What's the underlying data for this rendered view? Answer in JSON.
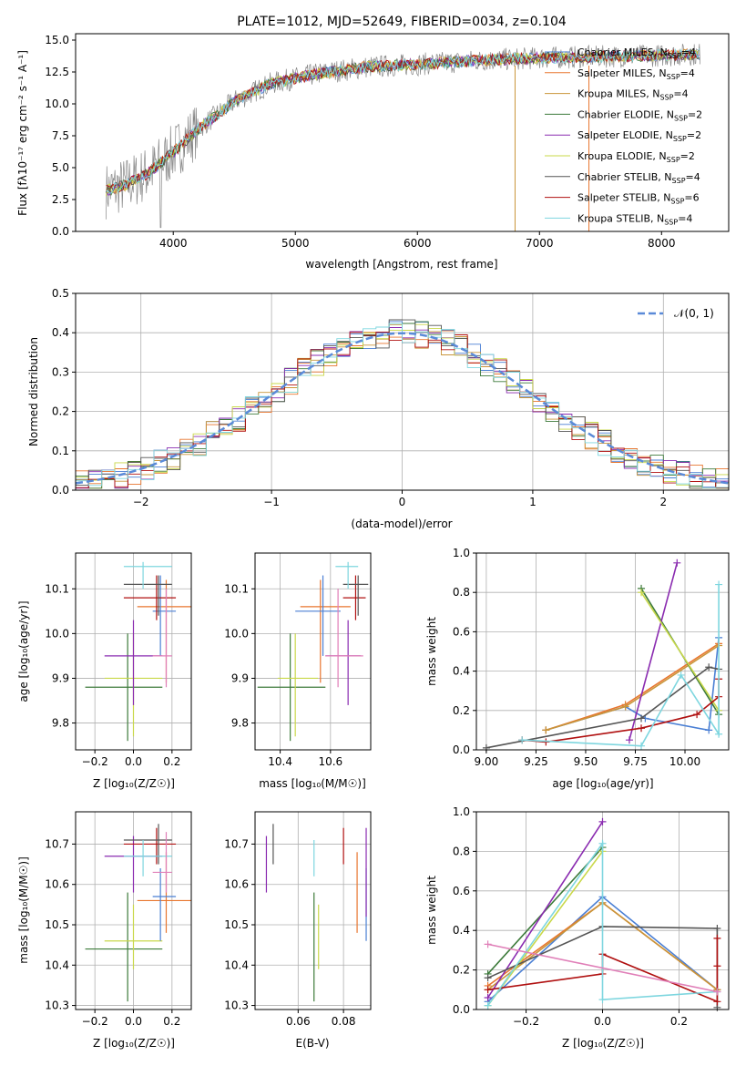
{
  "colors": {
    "cmiles": "#4a7fd4",
    "smiles": "#e8762f",
    "kmiles": "#c9953a",
    "celodie": "#3c7a3a",
    "selodie": "#8a2bb0",
    "kelodie": "#c9d84a",
    "cstelib": "#555555",
    "sstelib": "#b01010",
    "kstelib": "#7ed6df",
    "normal": "#5a8ad8"
  },
  "chart_data": [
    {
      "type": "line",
      "title": "PLATE=1012, MJD=52649, FIBERID=0034, z=0.104",
      "xlabel": "wavelength [Angstrom, rest frame]",
      "ylabel": "Flux [fλ10⁻¹⁷ erg cm⁻² s⁻¹ A⁻¹]",
      "xlim": [
        3200,
        8550
      ],
      "ylim": [
        0,
        15.5
      ],
      "xticks": [
        "4000",
        "5000",
        "6000",
        "7000",
        "8000"
      ],
      "yticks": [
        "0.0",
        "2.5",
        "5.0",
        "7.5",
        "10.0",
        "12.5",
        "15.0"
      ],
      "xtick_values": [
        4000,
        5000,
        6000,
        7000,
        8000
      ],
      "ytick_values": [
        0,
        2.5,
        5,
        7.5,
        10,
        12.5,
        15
      ],
      "observed": {
        "x": [
          3450,
          3600,
          3800,
          4000,
          4200,
          4500,
          4800,
          5200,
          5600,
          6000,
          6500,
          7000,
          7500,
          8000,
          8300
        ],
        "y": [
          3.2,
          3.6,
          4.6,
          6.2,
          8.0,
          10.2,
          11.6,
          12.4,
          12.9,
          13.1,
          13.4,
          13.6,
          13.7,
          13.8,
          13.9
        ]
      },
      "legend": [
        "Chabrier MILES, N_SSP=4",
        "Salpeter MILES, N_SSP=4",
        "Kroupa MILES, N_SSP=4",
        "Chabrier ELODIE, N_SSP=2",
        "Salpeter ELODIE, N_SSP=2",
        "Kroupa ELODIE, N_SSP=2",
        "Chabrier STELIB, N_SSP=4",
        "Salpeter STELIB, N_SSP=6",
        "Kroupa STELIB, N_SSP=4"
      ],
      "legend_labels": [
        "Chabrier MILES, N",
        "Salpeter MILES, N",
        "Kroupa MILES, N",
        "Chabrier ELODIE, N",
        "Salpeter ELODIE, N",
        "Kroupa ELODIE, N",
        "Chabrier STELIB, N",
        "Salpeter STELIB, N",
        "Kroupa STELIB, N"
      ],
      "legend_sub": "SSP",
      "legend_counts": [
        "=4",
        "=4",
        "=4",
        "=2",
        "=2",
        "=2",
        "=4",
        "=6",
        "=4"
      ],
      "legend_placement": "top-right"
    },
    {
      "type": "line",
      "xlabel": "(data-model)/error",
      "ylabel": "Normed distribution",
      "xlim": [
        -2.5,
        2.5
      ],
      "ylim": [
        0,
        0.5
      ],
      "xticks": [
        "−2",
        "−1",
        "0",
        "1",
        "2"
      ],
      "yticks": [
        "0.0",
        "0.1",
        "0.2",
        "0.3",
        "0.4",
        "0.5"
      ],
      "xtick_values": [
        -2,
        -1,
        0,
        1,
        2
      ],
      "ytick_values": [
        0,
        0.1,
        0.2,
        0.3,
        0.4,
        0.5
      ],
      "grid": true,
      "normal_label": "𝒩(0, 1)",
      "legend_placement": "top-right"
    },
    {
      "type": "scatter",
      "xlabel": "Z [log₁₀(Z/Z☉)]",
      "ylabel": "age  [log₁₀(age/yr)]",
      "xlim": [
        -0.3,
        0.3
      ],
      "ylim": [
        9.74,
        10.18
      ],
      "xticks": [
        "−0.2",
        "0.0",
        "0.2"
      ],
      "xtick_values": [
        -0.2,
        0,
        0.2
      ],
      "yticks": [
        "9.8",
        "9.9",
        "10.0",
        "10.1"
      ],
      "ytick_values": [
        9.8,
        9.9,
        10.0,
        10.1
      ],
      "grid": true
    },
    {
      "type": "scatter",
      "xlabel": "mass [log₁₀(M/M☉)]",
      "xlim": [
        10.3,
        10.76
      ],
      "ylim": [
        9.74,
        10.18
      ],
      "xticks": [
        "10.4",
        "10.6"
      ],
      "xtick_values": [
        10.4,
        10.6
      ],
      "yticks": [
        "9.8",
        "9.9",
        "10.0",
        "10.1"
      ],
      "ytick_values": [
        9.8,
        9.9,
        10.0,
        10.1
      ],
      "grid": true
    },
    {
      "type": "line",
      "xlabel": "age  [log₁₀(age/yr)]",
      "ylabel": "mass weight",
      "xlim": [
        8.95,
        10.22
      ],
      "ylim": [
        0,
        1.0
      ],
      "xticks": [
        "9.00",
        "9.25",
        "9.50",
        "9.75",
        "10.00"
      ],
      "xtick_values": [
        9.0,
        9.25,
        9.5,
        9.75,
        10.0
      ],
      "yticks": [
        "0.0",
        "0.2",
        "0.4",
        "0.6",
        "0.8",
        "1.0"
      ],
      "ytick_values": [
        0,
        0.2,
        0.4,
        0.6,
        0.8,
        1.0
      ],
      "grid": true,
      "series": [
        {
          "c": "cmiles",
          "x": [
            9.3,
            9.7,
            9.8,
            10.12,
            10.17
          ],
          "y": [
            0.1,
            0.22,
            0.16,
            0.1,
            0.57
          ]
        },
        {
          "c": "smiles",
          "x": [
            9.3,
            9.7,
            10.17
          ],
          "y": [
            0.1,
            0.23,
            0.54
          ]
        },
        {
          "c": "kmiles",
          "x": [
            9.3,
            9.7,
            10.17
          ],
          "y": [
            0.1,
            0.22,
            0.53
          ]
        },
        {
          "c": "celodie",
          "x": [
            9.78,
            10.17
          ],
          "y": [
            0.82,
            0.18
          ]
        },
        {
          "c": "selodie",
          "x": [
            9.72,
            9.96
          ],
          "y": [
            0.05,
            0.95
          ]
        },
        {
          "c": "kelodie",
          "x": [
            9.78,
            10.17
          ],
          "y": [
            0.8,
            0.2
          ]
        },
        {
          "c": "cstelib",
          "x": [
            9.0,
            9.78,
            10.12,
            10.17
          ],
          "y": [
            0.01,
            0.16,
            0.42,
            0.41
          ]
        },
        {
          "c": "sstelib",
          "x": [
            9.18,
            9.3,
            9.78,
            10.06,
            10.17,
            10.17
          ],
          "y": [
            0.05,
            0.04,
            0.11,
            0.18,
            0.27,
            0.36
          ]
        },
        {
          "c": "kstelib",
          "x": [
            9.18,
            9.78,
            9.98,
            10.17,
            10.17
          ],
          "y": [
            0.05,
            0.02,
            0.38,
            0.08,
            0.84
          ]
        }
      ]
    },
    {
      "type": "scatter",
      "xlabel": "Z [log₁₀(Z/Z☉)]",
      "ylabel": "mass [log₁₀(M/M☉)]",
      "xlim": [
        -0.3,
        0.3
      ],
      "ylim": [
        10.29,
        10.78
      ],
      "xticks": [
        "−0.2",
        "0.0",
        "0.2"
      ],
      "xtick_values": [
        -0.2,
        0,
        0.2
      ],
      "yticks": [
        "10.3",
        "10.4",
        "10.5",
        "10.6",
        "10.7"
      ],
      "ytick_values": [
        10.3,
        10.4,
        10.5,
        10.6,
        10.7
      ],
      "grid": true
    },
    {
      "type": "scatter",
      "xlabel": "E(B-V)",
      "xlim": [
        0.041,
        0.092
      ],
      "ylim": [
        10.29,
        10.78
      ],
      "xticks": [
        "0.06",
        "0.08"
      ],
      "xtick_values": [
        0.06,
        0.08
      ],
      "yticks": [
        "10.3",
        "10.4",
        "10.5",
        "10.6",
        "10.7"
      ],
      "ytick_values": [
        10.3,
        10.4,
        10.5,
        10.6,
        10.7
      ],
      "grid": true,
      "points": [
        {
          "c": "selodie",
          "x": 0.046,
          "y0": 10.58,
          "y1": 10.72
        },
        {
          "c": "cstelib",
          "x": 0.049,
          "y0": 10.65,
          "y1": 10.75
        },
        {
          "c": "celodie",
          "x": 0.067,
          "y0": 10.31,
          "y1": 10.58
        },
        {
          "c": "kstelib",
          "x": 0.067,
          "y0": 10.62,
          "y1": 10.71
        },
        {
          "c": "kelodie",
          "x": 0.069,
          "y0": 10.39,
          "y1": 10.55
        },
        {
          "c": "sstelib",
          "x": 0.08,
          "y0": 10.65,
          "y1": 10.74
        },
        {
          "c": "smiles",
          "x": 0.086,
          "y0": 10.48,
          "y1": 10.68
        },
        {
          "c": "cmiles",
          "x": 0.09,
          "y0": 10.46,
          "y1": 10.64
        },
        {
          "c": "selodie",
          "x": 0.09,
          "y0": 10.52,
          "y1": 10.74
        }
      ]
    },
    {
      "type": "line",
      "xlabel": "Z [log₁₀(Z/Z☉)]",
      "ylabel": "mass weight",
      "xlim": [
        -0.33,
        0.33
      ],
      "ylim": [
        0,
        1.0
      ],
      "xticks": [
        "−0.2",
        "0.0",
        "0.2"
      ],
      "xtick_values": [
        -0.2,
        0,
        0.2
      ],
      "yticks": [
        "0.0",
        "0.2",
        "0.4",
        "0.6",
        "0.8",
        "1.0"
      ],
      "ytick_values": [
        0,
        0.2,
        0.4,
        0.6,
        0.8,
        1.0
      ],
      "grid": true,
      "series": [
        {
          "c": "cmiles",
          "x": [
            -0.3,
            0,
            0.3
          ],
          "y": [
            0.04,
            0.57,
            0.1
          ]
        },
        {
          "c": "smiles",
          "x": [
            -0.3,
            0,
            0.3
          ],
          "y": [
            0.12,
            0.54,
            0.1
          ]
        },
        {
          "c": "kmiles",
          "x": [
            -0.3,
            0,
            0.3
          ],
          "y": [
            0.1,
            0.54,
            0.1
          ]
        },
        {
          "c": "celodie",
          "x": [
            -0.3,
            0
          ],
          "y": [
            0.18,
            0.82
          ]
        },
        {
          "c": "selodie",
          "x": [
            -0.3,
            0
          ],
          "y": [
            0.06,
            0.95
          ]
        },
        {
          "c": "kelodie",
          "x": [
            -0.3,
            0
          ],
          "y": [
            0.02,
            0.8
          ]
        },
        {
          "c": "cstelib",
          "x": [
            -0.3,
            0,
            0.3,
            0.3
          ],
          "y": [
            0.16,
            0.42,
            0.41,
            0.01
          ]
        },
        {
          "c": "sstelib",
          "x": [
            -0.3,
            0,
            0,
            0.3,
            0.3,
            0.3
          ],
          "y": [
            0.1,
            0.18,
            0.28,
            0.04,
            0.22,
            0.36
          ]
        },
        {
          "c": "kstelib",
          "x": [
            -0.3,
            0,
            0,
            0.3
          ],
          "y": [
            0.02,
            0.84,
            0.05,
            0.09
          ]
        },
        {
          "c": "selodie2",
          "x": [
            -0.3,
            0.3
          ],
          "y": [
            0.33,
            0.09
          ]
        }
      ]
    }
  ],
  "scatter_points": [
    {
      "c": "celodie",
      "z": -0.03,
      "zlo": -0.25,
      "zhi": 0.15,
      "age": 9.88,
      "alo": 9.76,
      "ahi": 10.0,
      "m": 10.44,
      "mlo": 10.31,
      "mhi": 10.58
    },
    {
      "c": "kelodie",
      "z": 0.0,
      "zlo": -0.15,
      "zhi": 0.15,
      "age": 9.9,
      "alo": 9.77,
      "ahi": 10.0,
      "m": 10.46,
      "mlo": 10.39,
      "mhi": 10.55
    },
    {
      "c": "selodie",
      "z": 0.0,
      "zlo": -0.15,
      "zhi": 0.15,
      "age": 9.95,
      "alo": 9.84,
      "ahi": 10.03,
      "m": 10.67,
      "mlo": 10.58,
      "mhi": 10.72
    },
    {
      "c": "smiles",
      "z": 0.17,
      "zlo": 0.02,
      "zhi": 0.3,
      "age": 10.06,
      "alo": 9.89,
      "ahi": 10.12,
      "m": 10.56,
      "mlo": 10.48,
      "mhi": 10.68
    },
    {
      "c": "cmiles",
      "z": 0.14,
      "zlo": 0.1,
      "zhi": 0.22,
      "age": 10.05,
      "alo": 9.95,
      "ahi": 10.13,
      "m": 10.57,
      "mlo": 10.46,
      "mhi": 10.64
    },
    {
      "c": "sstelib",
      "z": 0.12,
      "zlo": -0.05,
      "zhi": 0.22,
      "age": 10.08,
      "alo": 10.03,
      "ahi": 10.13,
      "m": 10.7,
      "mlo": 10.65,
      "mhi": 10.74
    },
    {
      "c": "cstelib",
      "z": 0.13,
      "zlo": -0.05,
      "zhi": 0.2,
      "age": 10.11,
      "alo": 10.04,
      "ahi": 10.13,
      "m": 10.71,
      "mlo": 10.65,
      "mhi": 10.75
    },
    {
      "c": "kstelib",
      "z": 0.05,
      "zlo": -0.05,
      "zhi": 0.2,
      "age": 10.15,
      "alo": 10.1,
      "ahi": 10.16,
      "m": 10.67,
      "mlo": 10.62,
      "mhi": 10.71
    },
    {
      "c": "selodie2",
      "z": 0.17,
      "zlo": 0.1,
      "zhi": 0.2,
      "age": 9.95,
      "alo": 9.88,
      "ahi": 10.1,
      "m": 10.63,
      "mlo": 10.58,
      "mhi": 10.73
    }
  ]
}
